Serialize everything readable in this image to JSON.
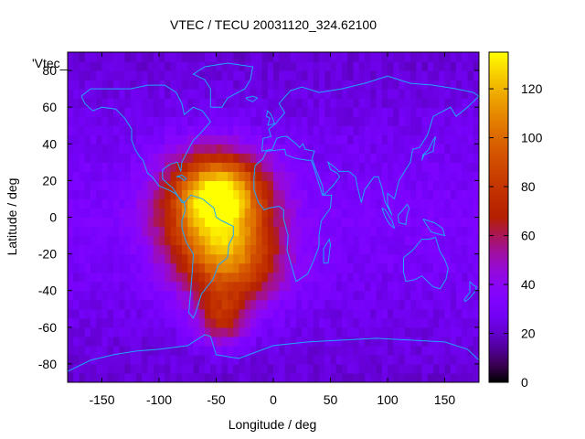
{
  "chart_data": {
    "type": "heatmap",
    "title": "VTEC / TECU 20031120_324.62100",
    "xlabel": "Longitude / deg",
    "ylabel": "Latitude / deg",
    "key_label": "'Vtec_",
    "xlim": [
      -180,
      180
    ],
    "ylim": [
      -90,
      90
    ],
    "x_ticks": [
      -150,
      -100,
      -50,
      0,
      50,
      100,
      150
    ],
    "y_ticks": [
      -80,
      -60,
      -40,
      -20,
      0,
      20,
      40,
      60,
      80
    ],
    "colorbar": {
      "range": [
        0,
        135
      ],
      "ticks": [
        0,
        20,
        40,
        60,
        80,
        100,
        120
      ],
      "palette": "black-blue-purple-red-orange-yellow"
    },
    "grid": false,
    "cell_size_deg": [
      5,
      5
    ],
    "field_features": [
      {
        "lon": -45,
        "lat": 15,
        "vtec": 105,
        "sigma_lon": 28,
        "sigma_lat": 14
      },
      {
        "lon": -35,
        "lat": -22,
        "vtec": 95,
        "sigma_lon": 30,
        "sigma_lat": 18
      },
      {
        "lon": -60,
        "lat": 0,
        "vtec": 80,
        "sigma_lon": 30,
        "sigma_lat": 22
      },
      {
        "lon": -45,
        "lat": -55,
        "vtec": 70,
        "sigma_lon": 15,
        "sigma_lat": 10
      }
    ],
    "background_vtec": 32,
    "coastlines": [
      {
        "name": "North America",
        "points": [
          [
            -168,
            66
          ],
          [
            -160,
            70
          ],
          [
            -140,
            70
          ],
          [
            -125,
            70
          ],
          [
            -110,
            72
          ],
          [
            -95,
            72
          ],
          [
            -85,
            68
          ],
          [
            -80,
            62
          ],
          [
            -78,
            56
          ],
          [
            -70,
            60
          ],
          [
            -62,
            58
          ],
          [
            -55,
            52
          ],
          [
            -65,
            45
          ],
          [
            -70,
            42
          ],
          [
            -76,
            35
          ],
          [
            -80,
            30
          ],
          [
            -81,
            25
          ],
          [
            -84,
            30
          ],
          [
            -90,
            29
          ],
          [
            -97,
            26
          ],
          [
            -97,
            21
          ],
          [
            -92,
            18
          ],
          [
            -88,
            16
          ],
          [
            -84,
            12
          ],
          [
            -80,
            8
          ],
          [
            -78,
            8
          ],
          [
            -86,
            13
          ],
          [
            -92,
            15
          ],
          [
            -100,
            17
          ],
          [
            -106,
            22
          ],
          [
            -110,
            24
          ],
          [
            -114,
            31
          ],
          [
            -117,
            33
          ],
          [
            -121,
            37
          ],
          [
            -124,
            42
          ],
          [
            -124,
            48
          ],
          [
            -130,
            54
          ],
          [
            -138,
            59
          ],
          [
            -150,
            60
          ],
          [
            -158,
            58
          ],
          [
            -165,
            62
          ],
          [
            -168,
            66
          ]
        ]
      },
      {
        "name": "South America",
        "points": [
          [
            -78,
            8
          ],
          [
            -72,
            12
          ],
          [
            -62,
            10
          ],
          [
            -52,
            5
          ],
          [
            -50,
            0
          ],
          [
            -45,
            -2
          ],
          [
            -35,
            -5
          ],
          [
            -35,
            -10
          ],
          [
            -39,
            -15
          ],
          [
            -40,
            -22
          ],
          [
            -48,
            -26
          ],
          [
            -53,
            -34
          ],
          [
            -58,
            -38
          ],
          [
            -63,
            -42
          ],
          [
            -65,
            -46
          ],
          [
            -68,
            -52
          ],
          [
            -70,
            -55
          ],
          [
            -74,
            -52
          ],
          [
            -73,
            -45
          ],
          [
            -72,
            -38
          ],
          [
            -71,
            -30
          ],
          [
            -70,
            -20
          ],
          [
            -76,
            -14
          ],
          [
            -80,
            -6
          ],
          [
            -80,
            -2
          ],
          [
            -77,
            4
          ],
          [
            -78,
            8
          ]
        ]
      },
      {
        "name": "Greenland",
        "points": [
          [
            -55,
            60
          ],
          [
            -45,
            60
          ],
          [
            -40,
            65
          ],
          [
            -25,
            70
          ],
          [
            -20,
            75
          ],
          [
            -18,
            82
          ],
          [
            -40,
            84
          ],
          [
            -60,
            82
          ],
          [
            -70,
            78
          ],
          [
            -60,
            75
          ],
          [
            -55,
            70
          ],
          [
            -55,
            60
          ]
        ]
      },
      {
        "name": "Europe-Asia",
        "points": [
          [
            -10,
            36
          ],
          [
            -9,
            43
          ],
          [
            -2,
            44
          ],
          [
            -4,
            48
          ],
          [
            2,
            51
          ],
          [
            6,
            54
          ],
          [
            10,
            57
          ],
          [
            5,
            62
          ],
          [
            15,
            69
          ],
          [
            25,
            71
          ],
          [
            40,
            68
          ],
          [
            60,
            70
          ],
          [
            80,
            73
          ],
          [
            100,
            77
          ],
          [
            120,
            73
          ],
          [
            140,
            72
          ],
          [
            160,
            70
          ],
          [
            175,
            68
          ],
          [
            180,
            66
          ],
          [
            170,
            60
          ],
          [
            160,
            55
          ],
          [
            155,
            60
          ],
          [
            140,
            55
          ],
          [
            135,
            45
          ],
          [
            128,
            38
          ],
          [
            122,
            37
          ],
          [
            120,
            30
          ],
          [
            110,
            20
          ],
          [
            106,
            10
          ],
          [
            100,
            13
          ],
          [
            100,
            7
          ],
          [
            104,
            1
          ],
          [
            98,
            8
          ],
          [
            95,
            16
          ],
          [
            92,
            22
          ],
          [
            88,
            22
          ],
          [
            80,
            15
          ],
          [
            77,
            8
          ],
          [
            73,
            18
          ],
          [
            72,
            22
          ],
          [
            66,
            25
          ],
          [
            57,
            25
          ],
          [
            56,
            26
          ],
          [
            52,
            28
          ],
          [
            48,
            30
          ],
          [
            50,
            26
          ],
          [
            56,
            24
          ],
          [
            58,
            22
          ],
          [
            52,
            17
          ],
          [
            44,
            12
          ],
          [
            43,
            17
          ],
          [
            36,
            28
          ],
          [
            34,
            32
          ],
          [
            36,
            36
          ],
          [
            28,
            37
          ],
          [
            26,
            40
          ],
          [
            23,
            38
          ],
          [
            20,
            40
          ],
          [
            16,
            42
          ],
          [
            12,
            44
          ],
          [
            8,
            44
          ],
          [
            3,
            43
          ],
          [
            -1,
            37
          ],
          [
            -10,
            36
          ]
        ]
      },
      {
        "name": "Africa",
        "points": [
          [
            -17,
            21
          ],
          [
            -16,
            28
          ],
          [
            -9,
            32
          ],
          [
            -6,
            36
          ],
          [
            10,
            37
          ],
          [
            11,
            34
          ],
          [
            20,
            32
          ],
          [
            30,
            31
          ],
          [
            33,
            31
          ],
          [
            35,
            28
          ],
          [
            38,
            22
          ],
          [
            43,
            12
          ],
          [
            51,
            12
          ],
          [
            50,
            5
          ],
          [
            42,
            -2
          ],
          [
            40,
            -10
          ],
          [
            40,
            -16
          ],
          [
            35,
            -24
          ],
          [
            30,
            -31
          ],
          [
            20,
            -35
          ],
          [
            18,
            -31
          ],
          [
            12,
            -18
          ],
          [
            13,
            -10
          ],
          [
            9,
            -1
          ],
          [
            9,
            4
          ],
          [
            5,
            6
          ],
          [
            -4,
            5
          ],
          [
            -8,
            4
          ],
          [
            -13,
            8
          ],
          [
            -17,
            15
          ],
          [
            -17,
            21
          ]
        ]
      },
      {
        "name": "Australia",
        "points": [
          [
            114,
            -22
          ],
          [
            122,
            -18
          ],
          [
            130,
            -12
          ],
          [
            136,
            -12
          ],
          [
            142,
            -11
          ],
          [
            146,
            -19
          ],
          [
            150,
            -23
          ],
          [
            153,
            -28
          ],
          [
            151,
            -34
          ],
          [
            146,
            -39
          ],
          [
            140,
            -38
          ],
          [
            135,
            -35
          ],
          [
            130,
            -32
          ],
          [
            124,
            -34
          ],
          [
            116,
            -35
          ],
          [
            114,
            -30
          ],
          [
            114,
            -22
          ]
        ]
      },
      {
        "name": "Antarctica",
        "points": [
          [
            -180,
            -84
          ],
          [
            -160,
            -78
          ],
          [
            -140,
            -75
          ],
          [
            -120,
            -73
          ],
          [
            -100,
            -72
          ],
          [
            -75,
            -70
          ],
          [
            -60,
            -64
          ],
          [
            -55,
            -65
          ],
          [
            -50,
            -75
          ],
          [
            -30,
            -77
          ],
          [
            0,
            -70
          ],
          [
            30,
            -68
          ],
          [
            60,
            -67
          ],
          [
            90,
            -66
          ],
          [
            120,
            -67
          ],
          [
            150,
            -68
          ],
          [
            170,
            -72
          ],
          [
            180,
            -78
          ],
          [
            180,
            -90
          ],
          [
            -180,
            -90
          ],
          [
            -180,
            -84
          ]
        ]
      },
      {
        "name": "Madagascar",
        "points": [
          [
            44,
            -25
          ],
          [
            48,
            -25
          ],
          [
            50,
            -15
          ],
          [
            49,
            -12
          ],
          [
            44,
            -17
          ],
          [
            44,
            -25
          ]
        ]
      },
      {
        "name": "Great Britain",
        "points": [
          [
            -5,
            50
          ],
          [
            1,
            51
          ],
          [
            0,
            53
          ],
          [
            -2,
            56
          ],
          [
            -5,
            58
          ],
          [
            -6,
            55
          ],
          [
            -3,
            54
          ],
          [
            -5,
            50
          ]
        ]
      },
      {
        "name": "Japan",
        "points": [
          [
            130,
            31
          ],
          [
            132,
            34
          ],
          [
            136,
            35
          ],
          [
            140,
            36
          ],
          [
            141,
            41
          ],
          [
            142,
            44
          ],
          [
            140,
            42
          ],
          [
            136,
            37
          ],
          [
            131,
            34
          ],
          [
            130,
            31
          ]
        ]
      },
      {
        "name": "Borneo",
        "points": [
          [
            109,
            1
          ],
          [
            112,
            3
          ],
          [
            117,
            7
          ],
          [
            119,
            5
          ],
          [
            117,
            1
          ],
          [
            116,
            -4
          ],
          [
            110,
            -3
          ],
          [
            109,
            1
          ]
        ]
      },
      {
        "name": "Sumatra",
        "points": [
          [
            95,
            5
          ],
          [
            98,
            4
          ],
          [
            104,
            -2
          ],
          [
            106,
            -6
          ],
          [
            102,
            -4
          ],
          [
            98,
            0
          ],
          [
            95,
            5
          ]
        ]
      },
      {
        "name": "New Guinea",
        "points": [
          [
            131,
            -1
          ],
          [
            141,
            -3
          ],
          [
            148,
            -6
          ],
          [
            150,
            -10
          ],
          [
            143,
            -9
          ],
          [
            138,
            -8
          ],
          [
            134,
            -4
          ],
          [
            131,
            -1
          ]
        ]
      },
      {
        "name": "New Zealand",
        "points": [
          [
            172,
            -35
          ],
          [
            175,
            -37
          ],
          [
            178,
            -38
          ],
          [
            176,
            -41
          ],
          [
            172,
            -44
          ],
          [
            168,
            -46
          ],
          [
            167,
            -45
          ],
          [
            172,
            -41
          ],
          [
            172,
            -35
          ]
        ]
      },
      {
        "name": "Iceland",
        "points": [
          [
            -24,
            65
          ],
          [
            -18,
            66
          ],
          [
            -14,
            65
          ],
          [
            -18,
            63
          ],
          [
            -22,
            64
          ],
          [
            -24,
            65
          ]
        ]
      },
      {
        "name": "Cuba",
        "points": [
          [
            -85,
            22
          ],
          [
            -80,
            23
          ],
          [
            -76,
            21
          ],
          [
            -78,
            20
          ],
          [
            -82,
            22
          ],
          [
            -85,
            22
          ]
        ]
      }
    ]
  }
}
